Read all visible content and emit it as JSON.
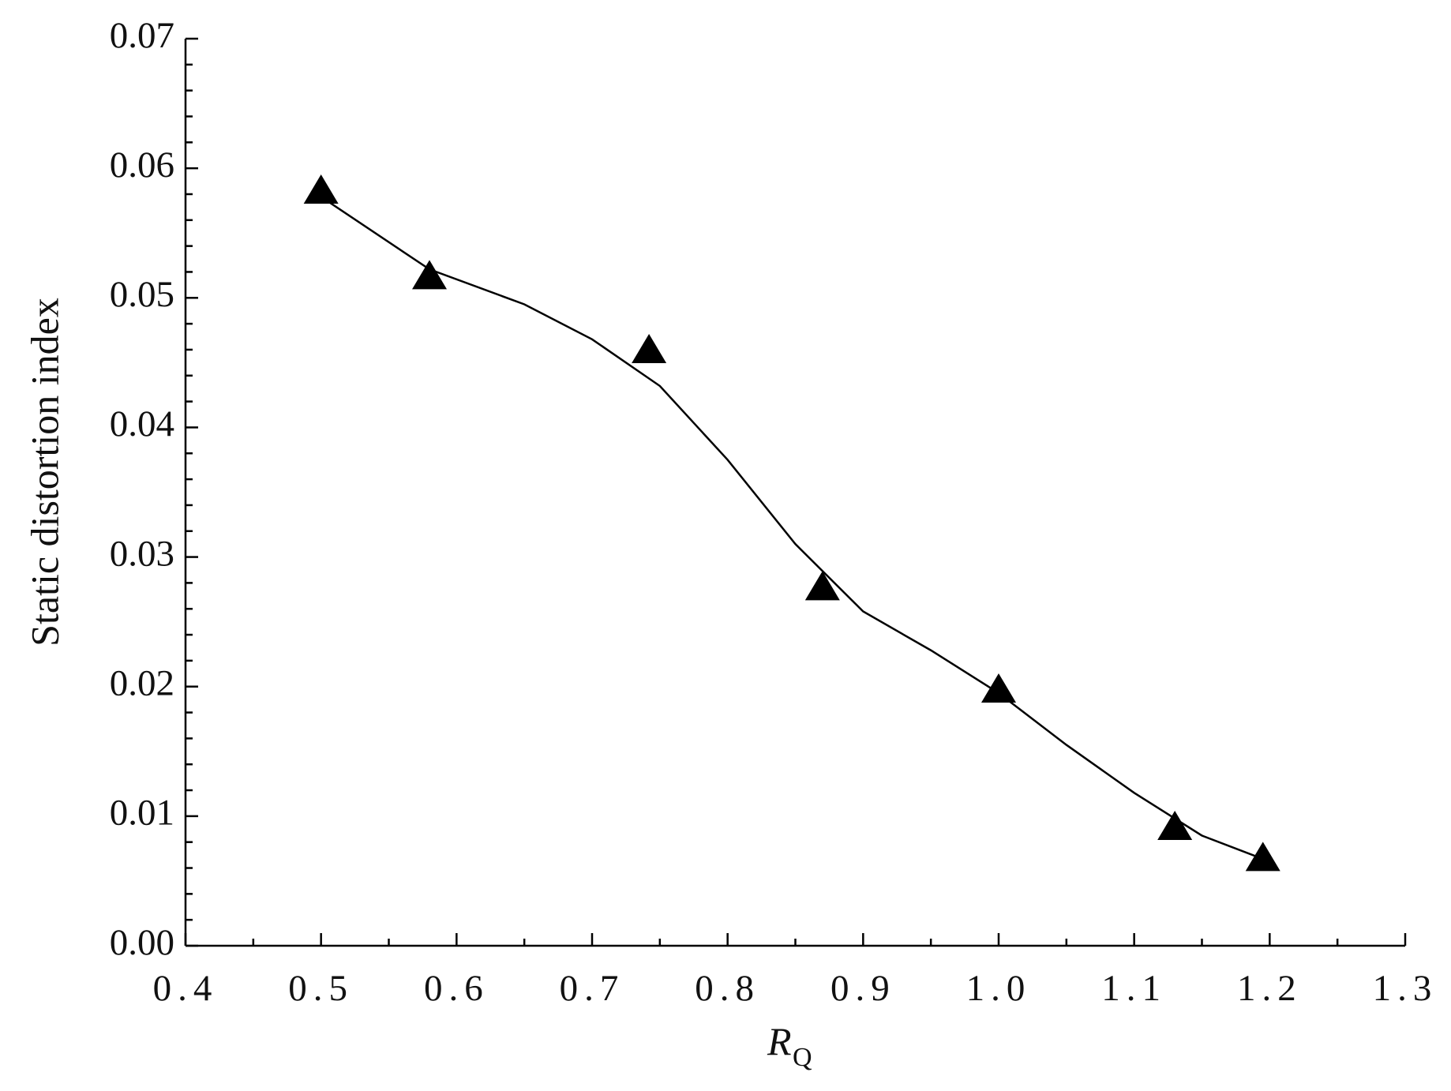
{
  "chart_data": {
    "type": "scatter",
    "x_label": "R",
    "x_label_sub": "Q",
    "y_label": "Static distortion index",
    "xlim": [
      0.4,
      1.3
    ],
    "xticks": [
      0.4,
      0.5,
      0.6,
      0.7,
      0.8,
      0.9,
      {
        "value": 1,
        "label": "1.0"
      },
      1.1,
      1.2,
      1.3
    ],
    "ylim": [
      0,
      0.07
    ],
    "yticks": [
      {
        "value": 0,
        "label": "0.00"
      },
      0.01,
      0.02,
      0.03,
      0.04,
      0.05,
      0.06,
      0.07
    ],
    "minor_ticks": true,
    "series": [
      {
        "marker": "triangle",
        "color": "#000000",
        "x": [
          0.5,
          0.58,
          0.742,
          0.87,
          1.0,
          1.13,
          1.195
        ],
        "values": [
          0.0583,
          0.0517,
          0.046,
          0.0277,
          0.0198,
          0.0092,
          0.0068
        ]
      },
      {
        "marker": "line",
        "color": "#000000",
        "x": [
          0.5,
          0.58,
          0.65,
          0.7,
          0.75,
          0.8,
          0.85,
          0.9,
          0.95,
          1.0,
          1.05,
          1.1,
          1.15,
          1.195
        ],
        "values": [
          0.0578,
          0.0522,
          0.0495,
          0.0468,
          0.0432,
          0.0375,
          0.031,
          0.0258,
          0.0228,
          0.0195,
          0.0155,
          0.0118,
          0.0085,
          0.0067
        ]
      }
    ]
  }
}
